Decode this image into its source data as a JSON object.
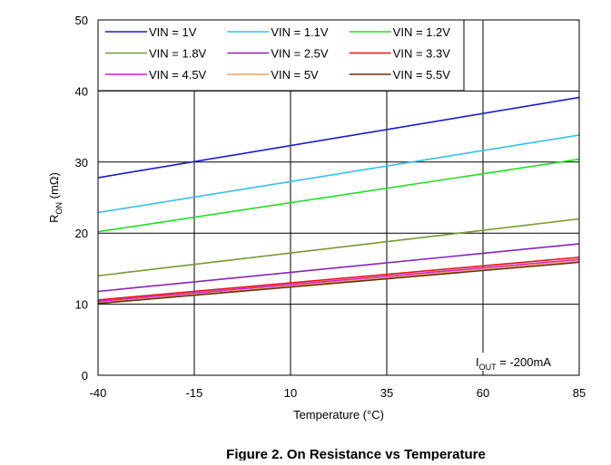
{
  "chart_data": {
    "type": "line",
    "title": "Figure 2. On Resistance vs Temperature",
    "xlabel": "Temperature (°C)",
    "ylabel": {
      "main": "R",
      "sub": "ON",
      "unit": " (mΩ)"
    },
    "xlim": [
      -40,
      85
    ],
    "ylim": [
      0,
      50
    ],
    "xticks": [
      -40,
      -15,
      10,
      35,
      60,
      85
    ],
    "yticks": [
      0,
      10,
      20,
      30,
      40,
      50
    ],
    "grid": true,
    "legend_position": "top-left",
    "annotation": {
      "main": "I",
      "sub": "OUT",
      "rest": " = -200mA"
    },
    "x": [
      -40,
      85
    ],
    "series": [
      {
        "name": "VIN = 1V",
        "color": "#1a1acc",
        "values": [
          27.8,
          39.1
        ]
      },
      {
        "name": "VIN = 1.1V",
        "color": "#33c0f0",
        "values": [
          22.9,
          33.8
        ]
      },
      {
        "name": "VIN = 1.2V",
        "color": "#22dd22",
        "values": [
          20.2,
          30.4
        ]
      },
      {
        "name": "VIN = 1.8V",
        "color": "#779933",
        "values": [
          14.0,
          22.0
        ]
      },
      {
        "name": "VIN = 2.5V",
        "color": "#8822bb",
        "values": [
          11.8,
          18.5
        ]
      },
      {
        "name": "VIN = 3.3V",
        "color": "#ee1111",
        "values": [
          10.6,
          16.6
        ]
      },
      {
        "name": "VIN = 4.5V",
        "color": "#cc22cc",
        "values": [
          10.4,
          16.3
        ]
      },
      {
        "name": "VIN = 5V",
        "color": "#f0a060",
        "values": [
          10.2,
          16.1
        ]
      },
      {
        "name": "VIN = 5.5V",
        "color": "#6b3010",
        "values": [
          10.1,
          15.9
        ]
      }
    ]
  }
}
